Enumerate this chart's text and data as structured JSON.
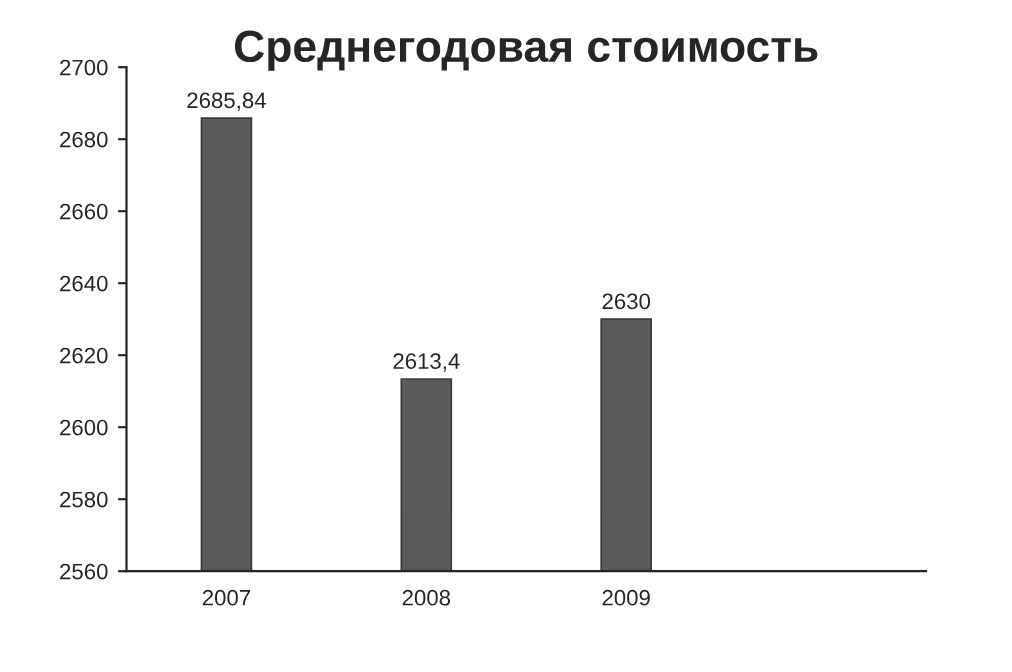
{
  "chart_data": {
    "type": "bar",
    "title": "Среднегодовая стоимость",
    "categories": [
      "2007",
      "2008",
      "2009",
      null
    ],
    "values": [
      2685.84,
      2613.4,
      2630,
      null
    ],
    "value_labels": [
      "2685,84",
      "2613,4",
      "2630",
      null
    ],
    "color": "#5a5a5a",
    "ylim": [
      2560,
      2700
    ],
    "yticks": [
      2560,
      2580,
      2600,
      2620,
      2640,
      2660,
      2680,
      2700
    ],
    "grid": false
  }
}
